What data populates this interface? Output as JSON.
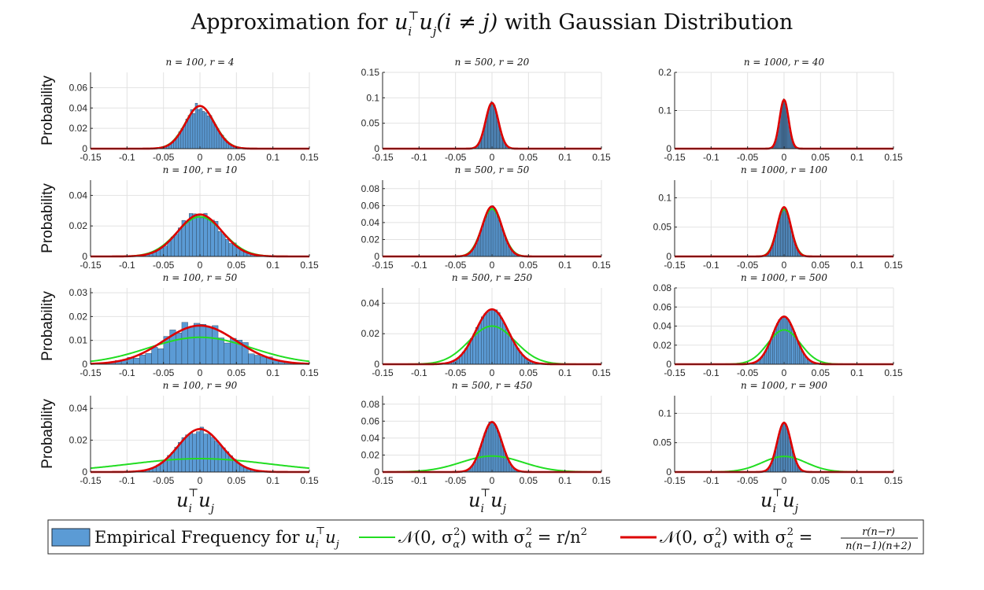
{
  "figure": {
    "title_prefix": "Approximation for ",
    "title_suffix": " with Gaussian Distribution",
    "title_math": {
      "u": "u",
      "i": "i",
      "T": "⊤",
      "j": "j",
      "cond": "(i ≠ j)"
    }
  },
  "legend": {
    "hist_label_prefix": "Empirical Frequency for ",
    "green_label_a": "𝒩(0, σ",
    "green_label_b": ") with σ",
    "green_label_c": " = r/n",
    "red_label_a": "𝒩(0, σ",
    "red_label_b": ") with σ",
    "red_label_c": " = ",
    "frac_num": "r(n−r)",
    "frac_den": "n(n−1)(n+2)",
    "sub_alpha": "α",
    "sup_2": "2"
  },
  "colors": {
    "hist_fill": "#5b9bd5",
    "hist_edge": "#1f2d3d",
    "green": "#22dd22",
    "red": "#dd0000",
    "grid": "#e2e2e2",
    "axis": "#262626"
  },
  "axis_labels": {
    "ylabel": "Probability",
    "xlabel_u": "u",
    "xlabel_i": "i",
    "xlabel_T": "⊤",
    "xlabel_j": "j"
  },
  "chart_data": [
    {
      "type": "bar",
      "title": "n = 100,  r = 4",
      "n": 100,
      "r": 4,
      "xlim": [
        -0.15,
        0.15
      ],
      "ylim": [
        0,
        0.075
      ],
      "yticks": [
        0,
        0.02,
        0.04,
        0.06
      ],
      "ytick_labels": [
        "0",
        "0.02",
        "0.04",
        "0.06"
      ],
      "xticks": [
        -0.15,
        -0.1,
        -0.05,
        0,
        0.05,
        0.1,
        0.15
      ],
      "xtick_labels": [
        "-0.15",
        "-0.1",
        "-0.05",
        "0",
        "0.05",
        "0.1",
        "0.15"
      ],
      "series": [
        {
          "name": "Empirical Frequency",
          "peak": 0.046
        },
        {
          "name": "N(0, r/n^2)",
          "peak": 0.042
        },
        {
          "name": "N(0, r(n-r)/(n(n-1)(n+2)))",
          "peak": 0.042
        }
      ]
    },
    {
      "type": "bar",
      "title": "n = 500,  r = 20",
      "n": 500,
      "r": 20,
      "xlim": [
        -0.15,
        0.15
      ],
      "ylim": [
        0,
        0.15
      ],
      "yticks": [
        0,
        0.05,
        0.1,
        0.15
      ],
      "ytick_labels": [
        "0",
        "0.05",
        "0.1",
        "0.15"
      ],
      "xticks": [
        -0.15,
        -0.1,
        -0.05,
        0,
        0.05,
        0.1,
        0.15
      ],
      "xtick_labels": [
        "-0.15",
        "-0.1",
        "-0.05",
        "0",
        "0.05",
        "0.1",
        "0.15"
      ],
      "series": [
        {
          "name": "Empirical Frequency",
          "peak": 0.094
        },
        {
          "name": "N(0, r/n^2)",
          "peak": 0.089
        },
        {
          "name": "N(0, r(n-r)/(n(n-1)(n+2)))",
          "peak": 0.09
        }
      ]
    },
    {
      "type": "bar",
      "title": "n = 1000,  r = 40",
      "n": 1000,
      "r": 40,
      "xlim": [
        -0.15,
        0.15
      ],
      "ylim": [
        0,
        0.2
      ],
      "yticks": [
        0,
        0.1,
        0.2
      ],
      "ytick_labels": [
        "0",
        "0.1",
        "0.2"
      ],
      "xticks": [
        -0.15,
        -0.1,
        -0.05,
        0,
        0.05,
        0.1,
        0.15
      ],
      "xtick_labels": [
        "-0.15",
        "-0.1",
        "-0.05",
        "0",
        "0.05",
        "0.1",
        "0.15"
      ],
      "series": [
        {
          "name": "Empirical Frequency",
          "peak": 0.132
        },
        {
          "name": "N(0, r/n^2)",
          "peak": 0.126
        },
        {
          "name": "N(0, r(n-r)/(n(n-1)(n+2)))",
          "peak": 0.128
        }
      ]
    },
    {
      "type": "bar",
      "title": "n = 100,  r = 10",
      "n": 100,
      "r": 10,
      "xlim": [
        -0.15,
        0.15
      ],
      "ylim": [
        0,
        0.05
      ],
      "yticks": [
        0,
        0.02,
        0.04
      ],
      "ytick_labels": [
        "0",
        "0.02",
        "0.04"
      ],
      "xticks": [
        -0.15,
        -0.1,
        -0.05,
        0,
        0.05,
        0.1,
        0.15
      ],
      "xtick_labels": [
        "-0.15",
        "-0.1",
        "-0.05",
        "0",
        "0.05",
        "0.1",
        "0.15"
      ],
      "series": [
        {
          "name": "Empirical Frequency",
          "peak": 0.031
        },
        {
          "name": "N(0, r/n^2)",
          "peak": 0.026
        },
        {
          "name": "N(0, r(n-r)/(n(n-1)(n+2)))",
          "peak": 0.0275
        }
      ]
    },
    {
      "type": "bar",
      "title": "n = 500,  r = 50",
      "n": 500,
      "r": 50,
      "xlim": [
        -0.15,
        0.15
      ],
      "ylim": [
        0,
        0.09
      ],
      "yticks": [
        0,
        0.02,
        0.04,
        0.06,
        0.08
      ],
      "ytick_labels": [
        "0",
        "0.02",
        "0.04",
        "0.06",
        "0.08"
      ],
      "xticks": [
        -0.15,
        -0.1,
        -0.05,
        0,
        0.05,
        0.1,
        0.15
      ],
      "xtick_labels": [
        "-0.15",
        "-0.1",
        "-0.05",
        "0",
        "0.05",
        "0.1",
        "0.15"
      ],
      "series": [
        {
          "name": "Empirical Frequency",
          "peak": 0.06
        },
        {
          "name": "N(0, r/n^2)",
          "peak": 0.056
        },
        {
          "name": "N(0, r(n-r)/(n(n-1)(n+2)))",
          "peak": 0.059
        }
      ]
    },
    {
      "type": "bar",
      "title": "n = 1000,  r = 100",
      "n": 1000,
      "r": 100,
      "xlim": [
        -0.15,
        0.15
      ],
      "ylim": [
        0,
        0.13
      ],
      "yticks": [
        0,
        0.05,
        0.1
      ],
      "ytick_labels": [
        "0",
        "0.05",
        "0.1"
      ],
      "xticks": [
        -0.15,
        -0.1,
        -0.05,
        0,
        0.05,
        0.1,
        0.15
      ],
      "xtick_labels": [
        "-0.15",
        "-0.1",
        "-0.05",
        "0",
        "0.05",
        "0.1",
        "0.15"
      ],
      "series": [
        {
          "name": "Empirical Frequency",
          "peak": 0.085
        },
        {
          "name": "N(0, r/n^2)",
          "peak": 0.08
        },
        {
          "name": "N(0, r(n-r)/(n(n-1)(n+2)))",
          "peak": 0.084
        }
      ]
    },
    {
      "type": "bar",
      "title": "n = 100,  r = 50",
      "n": 100,
      "r": 50,
      "xlim": [
        -0.15,
        0.15
      ],
      "ylim": [
        0,
        0.032
      ],
      "yticks": [
        0,
        0.01,
        0.02,
        0.03
      ],
      "ytick_labels": [
        "0",
        "0.01",
        "0.02",
        "0.03"
      ],
      "xticks": [
        -0.15,
        -0.1,
        -0.05,
        0,
        0.05,
        0.1,
        0.15
      ],
      "xtick_labels": [
        "-0.15",
        "-0.1",
        "-0.05",
        "0",
        "0.05",
        "0.1",
        "0.15"
      ],
      "series": [
        {
          "name": "Empirical Frequency",
          "peak": 0.02
        },
        {
          "name": "N(0, r/n^2)",
          "peak": 0.0113
        },
        {
          "name": "N(0, r(n-r)/(n(n-1)(n+2)))",
          "peak": 0.0162
        }
      ]
    },
    {
      "type": "bar",
      "title": "n = 500,  r = 250",
      "n": 500,
      "r": 250,
      "xlim": [
        -0.15,
        0.15
      ],
      "ylim": [
        0,
        0.05
      ],
      "yticks": [
        0,
        0.02,
        0.04
      ],
      "ytick_labels": [
        "0",
        "0.02",
        "0.04"
      ],
      "xticks": [
        -0.15,
        -0.1,
        -0.05,
        0,
        0.05,
        0.1,
        0.15
      ],
      "xtick_labels": [
        "-0.15",
        "-0.1",
        "-0.05",
        "0",
        "0.05",
        "0.1",
        "0.15"
      ],
      "series": [
        {
          "name": "Empirical Frequency",
          "peak": 0.037
        },
        {
          "name": "N(0, r/n^2)",
          "peak": 0.025
        },
        {
          "name": "N(0, r(n-r)/(n(n-1)(n+2)))",
          "peak": 0.036
        }
      ]
    },
    {
      "type": "bar",
      "title": "n = 1000,  r = 500",
      "n": 1000,
      "r": 500,
      "xlim": [
        -0.15,
        0.15
      ],
      "ylim": [
        0,
        0.08
      ],
      "yticks": [
        0,
        0.02,
        0.04,
        0.06,
        0.08
      ],
      "ytick_labels": [
        "0",
        "0.02",
        "0.04",
        "0.06",
        "0.08"
      ],
      "xticks": [
        -0.15,
        -0.1,
        -0.05,
        0,
        0.05,
        0.1,
        0.15
      ],
      "xtick_labels": [
        "-0.15",
        "-0.1",
        "-0.05",
        "0",
        "0.05",
        "0.1",
        "0.15"
      ],
      "series": [
        {
          "name": "Empirical Frequency",
          "peak": 0.051
        },
        {
          "name": "N(0, r/n^2)",
          "peak": 0.036
        },
        {
          "name": "N(0, r(n-r)/(n(n-1)(n+2)))",
          "peak": 0.05
        }
      ]
    },
    {
      "type": "bar",
      "title": "n = 100,  r = 90",
      "n": 100,
      "r": 90,
      "xlim": [
        -0.15,
        0.15
      ],
      "ylim": [
        0,
        0.048
      ],
      "yticks": [
        0,
        0.02,
        0.04
      ],
      "ytick_labels": [
        "0",
        "0.02",
        "0.04"
      ],
      "xticks": [
        -0.15,
        -0.1,
        -0.05,
        0,
        0.05,
        0.1,
        0.15
      ],
      "xtick_labels": [
        "-0.15",
        "-0.1",
        "-0.05",
        "0",
        "0.05",
        "0.1",
        "0.15"
      ],
      "series": [
        {
          "name": "Empirical Frequency",
          "peak": 0.029
        },
        {
          "name": "N(0, r/n^2)",
          "peak": 0.0084
        },
        {
          "name": "N(0, r(n-r)/(n(n-1)(n+2)))",
          "peak": 0.027
        }
      ]
    },
    {
      "type": "bar",
      "title": "n = 500,  r = 450",
      "n": 500,
      "r": 450,
      "xlim": [
        -0.15,
        0.15
      ],
      "ylim": [
        0,
        0.09
      ],
      "yticks": [
        0,
        0.02,
        0.04,
        0.06,
        0.08
      ],
      "ytick_labels": [
        "0",
        "0.02",
        "0.04",
        "0.06",
        "0.08"
      ],
      "xticks": [
        -0.15,
        -0.1,
        -0.05,
        0,
        0.05,
        0.1,
        0.15
      ],
      "xtick_labels": [
        "-0.15",
        "-0.1",
        "-0.05",
        "0",
        "0.05",
        "0.1",
        "0.15"
      ],
      "series": [
        {
          "name": "Empirical Frequency",
          "peak": 0.061
        },
        {
          "name": "N(0, r/n^2)",
          "peak": 0.0188
        },
        {
          "name": "N(0, r(n-r)/(n(n-1)(n+2)))",
          "peak": 0.059
        }
      ]
    },
    {
      "type": "bar",
      "title": "n = 1000,  r = 900",
      "n": 1000,
      "r": 900,
      "xlim": [
        -0.15,
        0.15
      ],
      "ylim": [
        0,
        0.13
      ],
      "yticks": [
        0,
        0.05,
        0.1
      ],
      "ytick_labels": [
        "0",
        "0.05",
        "0.1"
      ],
      "xticks": [
        -0.15,
        -0.1,
        -0.05,
        0,
        0.05,
        0.1,
        0.15
      ],
      "xtick_labels": [
        "-0.15",
        "-0.1",
        "-0.05",
        "0",
        "0.05",
        "0.1",
        "0.15"
      ],
      "series": [
        {
          "name": "Empirical Frequency",
          "peak": 0.085
        },
        {
          "name": "N(0, r/n^2)",
          "peak": 0.0266
        },
        {
          "name": "N(0, r(n-r)/(n(n-1)(n+2)))",
          "peak": 0.084
        }
      ]
    }
  ]
}
